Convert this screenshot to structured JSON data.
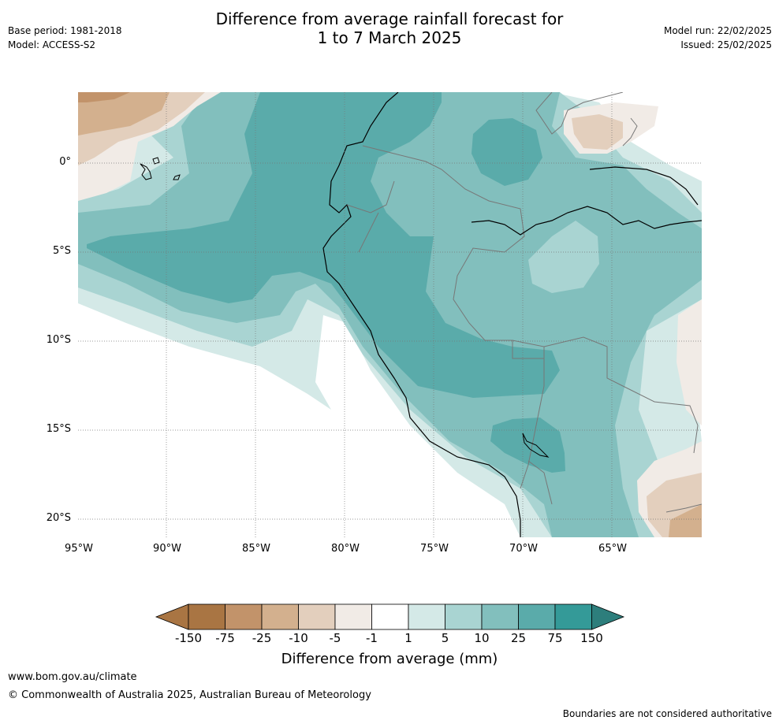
{
  "header": {
    "title_line1": "Difference from average rainfall forecast for",
    "title_line2": "1 to 7 March 2025",
    "base_period": "Base period: 1981-2018",
    "model": "Model: ACCESS-S2",
    "model_run": "Model run: 22/02/2025",
    "issued": "Issued: 25/02/2025"
  },
  "map": {
    "lat_labels": [
      "0°",
      "5°S",
      "10°S",
      "15°S",
      "20°S"
    ],
    "lon_labels": [
      "95°W",
      "90°W",
      "85°W",
      "80°W",
      "75°W",
      "70°W",
      "65°W"
    ],
    "colors": {
      "brown_dark": "#a97543",
      "brown_med": "#c2936a",
      "brown_light": "#d3b08e",
      "brown_pale": "#e3cfbd",
      "brown_faint": "#f1ebe6",
      "white": "#ffffff",
      "teal_faint": "#d4e9e7",
      "teal_light": "#a9d4d2",
      "teal_med": "#82bfbd",
      "teal": "#5aabaa",
      "teal_dark": "#349a98",
      "teal_darkest": "#2d7e7c"
    }
  },
  "colorbar": {
    "ticks": [
      "-150",
      "-75",
      "-25",
      "-10",
      "-5",
      "-1",
      "1",
      "5",
      "10",
      "25",
      "75",
      "150"
    ],
    "title": "Difference from average (mm)"
  },
  "footer": {
    "url": "www.bom.gov.au/climate",
    "copyright": "© Commonwealth of Australia 2025, Australian Bureau of Meteorology",
    "disclaimer": "Boundaries are not considered authoritative"
  }
}
